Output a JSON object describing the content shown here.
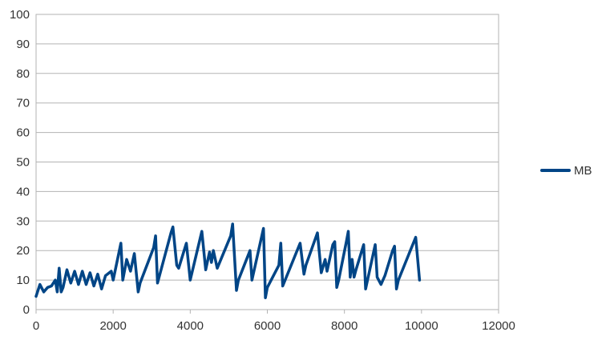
{
  "chart_data": {
    "type": "line",
    "title": "",
    "xlabel": "",
    "ylabel": "",
    "xlim": [
      0,
      12000
    ],
    "ylim": [
      0,
      100
    ],
    "x_ticks": [
      0,
      2000,
      4000,
      6000,
      8000,
      10000,
      12000
    ],
    "y_ticks": [
      0,
      10,
      20,
      30,
      40,
      50,
      60,
      70,
      80,
      90,
      100
    ],
    "grid": "horizontal",
    "legend_position": "right",
    "series": [
      {
        "name": "MB",
        "color": "#004586",
        "points": [
          [
            0,
            4.5
          ],
          [
            100,
            8.5
          ],
          [
            200,
            6
          ],
          [
            300,
            7.5
          ],
          [
            400,
            8
          ],
          [
            500,
            10
          ],
          [
            550,
            6
          ],
          [
            600,
            14
          ],
          [
            650,
            6
          ],
          [
            700,
            7.5
          ],
          [
            800,
            13.5
          ],
          [
            900,
            9
          ],
          [
            1000,
            13
          ],
          [
            1100,
            8.5
          ],
          [
            1200,
            13
          ],
          [
            1300,
            8.5
          ],
          [
            1400,
            12.5
          ],
          [
            1500,
            8
          ],
          [
            1600,
            12
          ],
          [
            1700,
            7
          ],
          [
            1800,
            11.5
          ],
          [
            1950,
            13
          ],
          [
            2000,
            10
          ],
          [
            2200,
            22.5
          ],
          [
            2250,
            10
          ],
          [
            2350,
            17
          ],
          [
            2450,
            13
          ],
          [
            2550,
            19
          ],
          [
            2650,
            6
          ],
          [
            2700,
            9
          ],
          [
            3050,
            21
          ],
          [
            3100,
            25
          ],
          [
            3150,
            9
          ],
          [
            3500,
            26
          ],
          [
            3550,
            28
          ],
          [
            3650,
            15
          ],
          [
            3700,
            14
          ],
          [
            3900,
            22.5
          ],
          [
            4000,
            10
          ],
          [
            4300,
            26.5
          ],
          [
            4400,
            13.5
          ],
          [
            4500,
            19.5
          ],
          [
            4550,
            16
          ],
          [
            4600,
            20
          ],
          [
            4700,
            14
          ],
          [
            5050,
            25
          ],
          [
            5100,
            29
          ],
          [
            5200,
            6.5
          ],
          [
            5250,
            10
          ],
          [
            5550,
            20
          ],
          [
            5600,
            10
          ],
          [
            5900,
            27.5
          ],
          [
            5950,
            4
          ],
          [
            6000,
            7.5
          ],
          [
            6300,
            15
          ],
          [
            6350,
            22.5
          ],
          [
            6400,
            8
          ],
          [
            6850,
            22.5
          ],
          [
            6950,
            12
          ],
          [
            7000,
            15
          ],
          [
            7300,
            26
          ],
          [
            7400,
            12.5
          ],
          [
            7500,
            17
          ],
          [
            7550,
            13
          ],
          [
            7700,
            22
          ],
          [
            7750,
            23
          ],
          [
            7800,
            7.5
          ],
          [
            7850,
            10
          ],
          [
            8050,
            23
          ],
          [
            8100,
            26.5
          ],
          [
            8150,
            11
          ],
          [
            8200,
            17
          ],
          [
            8250,
            11
          ],
          [
            8300,
            13.5
          ],
          [
            8500,
            22
          ],
          [
            8550,
            7
          ],
          [
            8600,
            10
          ],
          [
            8800,
            22
          ],
          [
            8850,
            11
          ],
          [
            8950,
            8.5
          ],
          [
            9050,
            11.5
          ],
          [
            9250,
            20
          ],
          [
            9300,
            21.5
          ],
          [
            9350,
            7
          ],
          [
            9400,
            10
          ],
          [
            9850,
            24.5
          ],
          [
            9950,
            10
          ]
        ]
      }
    ]
  }
}
